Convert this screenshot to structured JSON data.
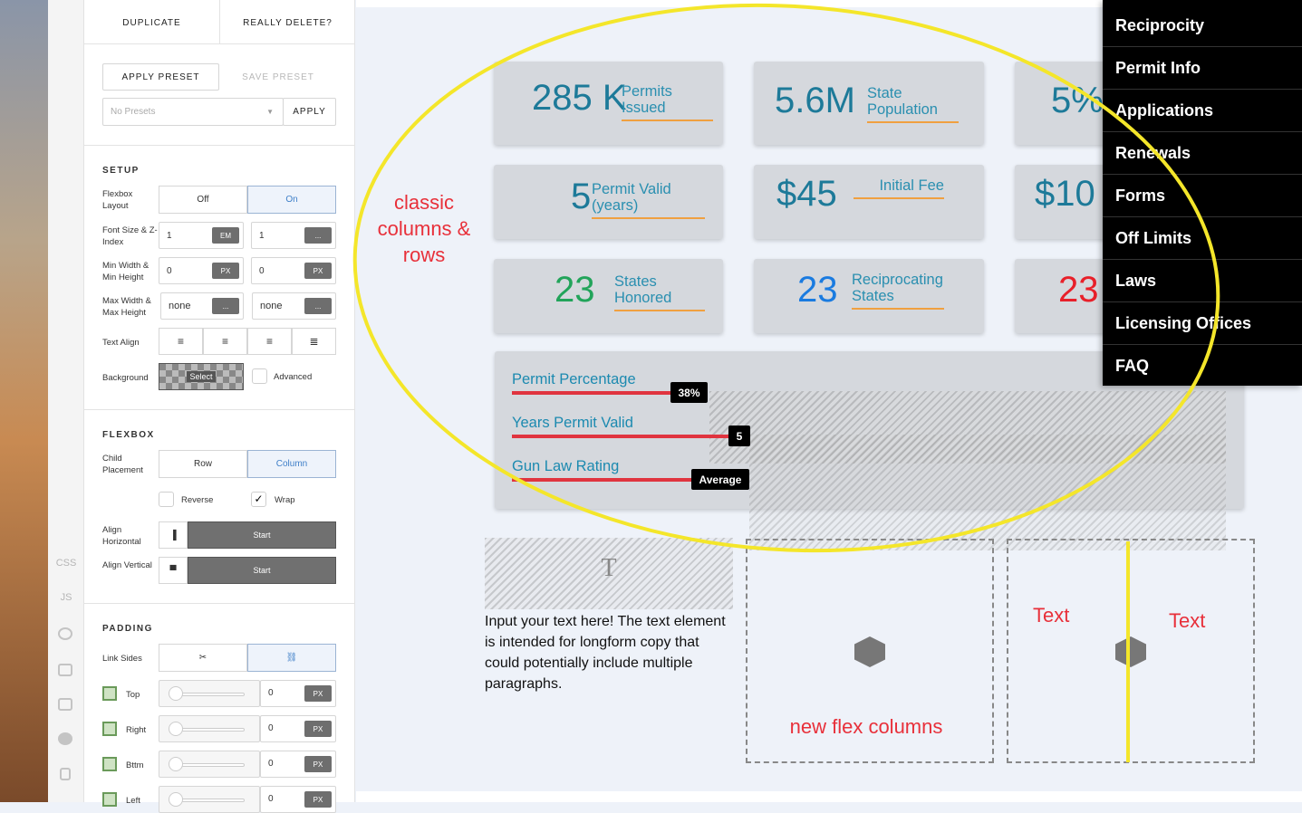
{
  "toolbar": {
    "duplicate": "DUPLICATE",
    "delete": "REALLY DELETE?"
  },
  "icon_bar": {
    "css": "CSS",
    "js": "JS"
  },
  "presets": {
    "apply_preset": "APPLY PRESET",
    "save_preset": "SAVE PRESET",
    "select": "No Presets",
    "apply": "APPLY"
  },
  "setup": {
    "title": "SETUP",
    "flexbox_layout": {
      "label": "Flexbox Layout",
      "off": "Off",
      "on": "On"
    },
    "font_size": {
      "label": "Font Size & Z-Index",
      "value1": "1",
      "unit1": "EM",
      "value2": "1",
      "unit2": "..."
    },
    "min_size": {
      "label": "Min Width & Min Height",
      "value1": "0",
      "unit1": "PX",
      "value2": "0",
      "unit2": "PX"
    },
    "max_size": {
      "label": "Max Width & Max Height",
      "value1": "none",
      "unit1": "...",
      "value2": "none",
      "unit2": "..."
    },
    "text_align": {
      "label": "Text Align"
    },
    "background": {
      "label": "Background",
      "select": "Select",
      "advanced": "Advanced"
    }
  },
  "flexbox": {
    "title": "FLEXBOX",
    "child_placement": {
      "label": "Child Placement",
      "row": "Row",
      "column": "Column"
    },
    "reverse": "Reverse",
    "wrap": "Wrap",
    "align_horizontal": {
      "label": "Align Horizontal",
      "value": "Start"
    },
    "align_vertical": {
      "label": "Align Vertical",
      "value": "Start"
    }
  },
  "padding": {
    "title": "PADDING",
    "link_sides": "Link Sides",
    "sides": [
      {
        "label": "Top",
        "value": "0",
        "unit": "PX"
      },
      {
        "label": "Right",
        "value": "0",
        "unit": "PX"
      },
      {
        "label": "Bttm",
        "value": "0",
        "unit": "PX"
      },
      {
        "label": "Left",
        "value": "0",
        "unit": "PX"
      }
    ]
  },
  "cards": [
    {
      "number": "285 K",
      "label": "Permits Issued"
    },
    {
      "number": "5.6M",
      "label": "State Population"
    },
    {
      "number": "5%"
    },
    {
      "number": "5",
      "label": "Permit Valid (years)"
    },
    {
      "number": "$45",
      "label": "Initial Fee"
    },
    {
      "number": "$10"
    },
    {
      "number": "23",
      "label": "States Honored"
    },
    {
      "number": "23",
      "label": "Reciprocating States"
    },
    {
      "number": "23"
    }
  ],
  "progress": [
    {
      "label": "Permit Percentage",
      "badge": "38%"
    },
    {
      "label": "Years Permit Valid",
      "badge": "5"
    },
    {
      "label": "Gun Law Rating",
      "badge": "Average"
    }
  ],
  "text_element": "Input your text here! The text element is intended for longform copy that could potentially include multiple paragraphs.",
  "annotations": {
    "classic": "classic columns & rows",
    "flex": "new flex columns",
    "text_left": "Text",
    "text_right": "Text"
  },
  "menu": [
    "Reciprocity",
    "Permit Info",
    "Applications",
    "Renewals",
    "Forms",
    "Off Limits",
    "Laws",
    "Licensing Offices",
    "FAQ"
  ]
}
